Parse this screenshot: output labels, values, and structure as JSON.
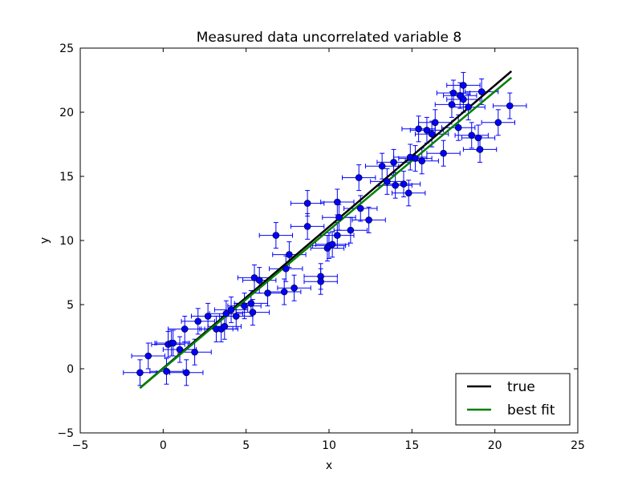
{
  "chart_data": {
    "type": "scatter",
    "title": "Measured data uncorrelated variable 8",
    "xlabel": "x",
    "ylabel": "y",
    "xlim": [
      -5,
      25
    ],
    "ylim": [
      -5,
      25
    ],
    "xticks": [
      -5,
      0,
      5,
      10,
      15,
      20,
      25
    ],
    "yticks": [
      -5,
      0,
      5,
      10,
      15,
      20,
      25
    ],
    "legend_position": "lower-right",
    "colors": {
      "points": "#0000ff",
      "true": "#000000",
      "fit": "#008000"
    },
    "points": [
      {
        "x": -1.4,
        "y": -0.3
      },
      {
        "x": -0.9,
        "y": 1.0
      },
      {
        "x": 0.2,
        "y": -0.2
      },
      {
        "x": 0.3,
        "y": 1.9
      },
      {
        "x": 0.5,
        "y": 2.0
      },
      {
        "x": 0.6,
        "y": 2.0
      },
      {
        "x": 1.0,
        "y": 1.5
      },
      {
        "x": 1.3,
        "y": 3.1
      },
      {
        "x": 1.4,
        "y": -0.3
      },
      {
        "x": 1.9,
        "y": 1.3
      },
      {
        "x": 2.1,
        "y": 3.7
      },
      {
        "x": 2.7,
        "y": 4.1
      },
      {
        "x": 3.2,
        "y": 3.1
      },
      {
        "x": 3.5,
        "y": 3.1
      },
      {
        "x": 3.7,
        "y": 3.3
      },
      {
        "x": 3.8,
        "y": 4.3
      },
      {
        "x": 4.1,
        "y": 4.6
      },
      {
        "x": 4.4,
        "y": 4.1
      },
      {
        "x": 4.9,
        "y": 4.9
      },
      {
        "x": 5.3,
        "y": 5.1
      },
      {
        "x": 5.4,
        "y": 4.4
      },
      {
        "x": 5.5,
        "y": 7.1
      },
      {
        "x": 5.8,
        "y": 6.9
      },
      {
        "x": 6.3,
        "y": 5.9
      },
      {
        "x": 6.8,
        "y": 10.4
      },
      {
        "x": 7.3,
        "y": 6.0
      },
      {
        "x": 7.4,
        "y": 7.8
      },
      {
        "x": 7.6,
        "y": 8.9
      },
      {
        "x": 7.9,
        "y": 6.3
      },
      {
        "x": 8.7,
        "y": 12.9
      },
      {
        "x": 8.7,
        "y": 11.1
      },
      {
        "x": 9.5,
        "y": 7.2
      },
      {
        "x": 9.5,
        "y": 6.8
      },
      {
        "x": 9.9,
        "y": 9.4
      },
      {
        "x": 10.0,
        "y": 9.6
      },
      {
        "x": 10.2,
        "y": 9.7
      },
      {
        "x": 10.5,
        "y": 13.0
      },
      {
        "x": 10.5,
        "y": 10.4
      },
      {
        "x": 10.6,
        "y": 11.8
      },
      {
        "x": 11.3,
        "y": 10.8
      },
      {
        "x": 11.8,
        "y": 14.9
      },
      {
        "x": 11.9,
        "y": 12.5
      },
      {
        "x": 12.4,
        "y": 11.6
      },
      {
        "x": 13.2,
        "y": 15.8
      },
      {
        "x": 13.5,
        "y": 14.6
      },
      {
        "x": 13.9,
        "y": 16.1
      },
      {
        "x": 14.0,
        "y": 14.3
      },
      {
        "x": 14.5,
        "y": 14.4
      },
      {
        "x": 14.8,
        "y": 13.7
      },
      {
        "x": 14.9,
        "y": 16.5
      },
      {
        "x": 15.2,
        "y": 16.4
      },
      {
        "x": 15.4,
        "y": 18.7
      },
      {
        "x": 15.6,
        "y": 16.2
      },
      {
        "x": 15.9,
        "y": 18.6
      },
      {
        "x": 16.2,
        "y": 18.3
      },
      {
        "x": 16.4,
        "y": 19.2
      },
      {
        "x": 16.9,
        "y": 16.8
      },
      {
        "x": 17.4,
        "y": 20.6
      },
      {
        "x": 17.5,
        "y": 21.5
      },
      {
        "x": 17.8,
        "y": 18.8
      },
      {
        "x": 17.9,
        "y": 21.3
      },
      {
        "x": 18.1,
        "y": 22.1
      },
      {
        "x": 18.1,
        "y": 21.0
      },
      {
        "x": 18.4,
        "y": 20.4
      },
      {
        "x": 18.6,
        "y": 18.2
      },
      {
        "x": 19.0,
        "y": 18.0
      },
      {
        "x": 19.1,
        "y": 17.1
      },
      {
        "x": 19.2,
        "y": 21.6
      },
      {
        "x": 20.2,
        "y": 19.2
      },
      {
        "x": 20.9,
        "y": 20.5
      }
    ],
    "x_err": 1.0,
    "y_err": 1.0,
    "series": [
      {
        "name": "true",
        "x": [
          -1.4,
          21.0
        ],
        "y": [
          -1.5,
          23.2
        ]
      },
      {
        "name": "best fit",
        "x": [
          -1.4,
          21.0
        ],
        "y": [
          -1.5,
          22.7
        ]
      }
    ]
  }
}
